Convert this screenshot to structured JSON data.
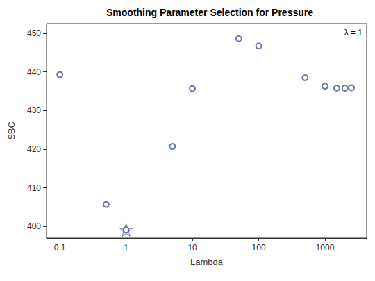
{
  "chart_data": {
    "type": "scatter",
    "title": "Smoothing Parameter Selection for Pressure",
    "x_label": "Lambda",
    "y_label": "SBC",
    "x": [
      0.1,
      0.5,
      1,
      5,
      10,
      50,
      100,
      500,
      1000,
      1500,
      2000,
      2500
    ],
    "values": [
      439.3,
      405.7,
      399.1,
      420.7,
      435.7,
      448.6,
      446.7,
      438.5,
      436.3,
      435.8,
      435.8,
      435.9
    ],
    "color": "#445694",
    "marker": "circle",
    "selected": {
      "x": 1,
      "y": 399.1,
      "marker": "star"
    },
    "annotation": "λ = 1",
    "log": "x",
    "xlim": [
      0.063,
      4250
    ],
    "xticks": [
      0.1,
      1,
      10,
      100,
      1000
    ],
    "ylim": [
      397,
      452.5
    ],
    "yticks": [
      400,
      410,
      420,
      430,
      440,
      450
    ],
    "grid": false
  }
}
